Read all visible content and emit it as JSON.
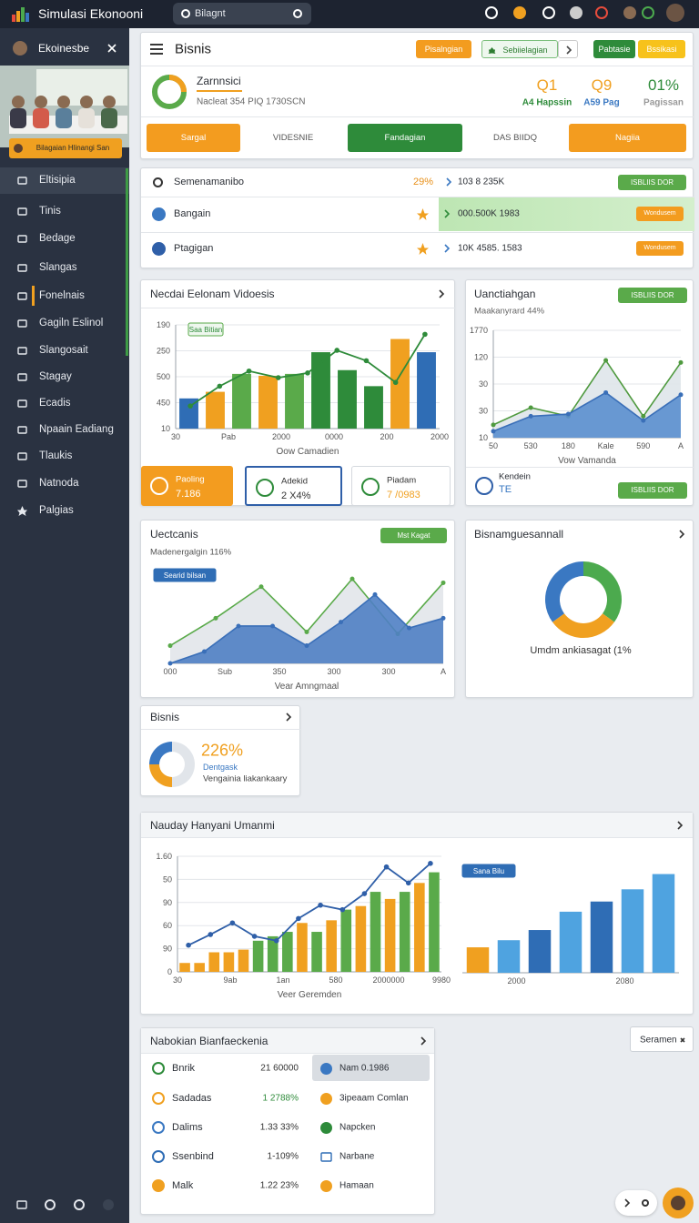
{
  "topbar": {
    "app_title": "Simulasi Ekonooni",
    "search": "Bilagnt"
  },
  "sidebar": {
    "title": "Ekoinesbe",
    "promo": "Bilagaian Hlinangi San",
    "menu": [
      "Eltisipia",
      "Tinis",
      "Bedage",
      "Slangas",
      "Fonelnais",
      "Gagiln Eslinol",
      "Slangosait",
      "Stagay",
      "Ecadis",
      "Npaain Eadiang",
      "Tlaukis",
      "Natnoda",
      "Palgias"
    ]
  },
  "header": {
    "title": "Bisnis",
    "buttons": [
      "Pisalngian",
      "Sebiielagian",
      "Pabtasie",
      "Bssikasi"
    ],
    "profile": {
      "name": "Zarnnsici",
      "subtitle": "Nacleat 354 PIQ 1730SCN"
    },
    "stats": [
      {
        "value": "Q1",
        "label": "A4 Hapssin"
      },
      {
        "value": "Q9",
        "label": "A59 Pag"
      },
      {
        "value": "01%",
        "label": "Pagissan"
      }
    ],
    "tabs": [
      "Sargal",
      "VIDESNIE",
      "Fandagian",
      "DAS BIIDQ",
      "Nagiia"
    ]
  },
  "summary": {
    "rows": [
      {
        "name": "Semenamanibo",
        "pct": "29%",
        "amount": "103 8 235K",
        "action": "ISBLIIS DOR"
      },
      {
        "name": "Bangain",
        "amount": "000.500K 1983",
        "action": "Wondusem"
      },
      {
        "name": "Ptagigan",
        "amount": "10K 4585. 1583",
        "action": "Wondusem"
      }
    ]
  },
  "necdai": {
    "title": "Necdai Eelonam Vidoesis",
    "chart": {
      "type": "combo",
      "legend": "Saa Bitian",
      "ylim": [
        0,
        110
      ],
      "y_labels": [
        "10",
        "450",
        "500",
        "250",
        "190"
      ],
      "x_labels": [
        "30",
        "Pab",
        "2000",
        "0000",
        "200",
        "2000"
      ],
      "x_title": "Oow Camadien",
      "bars": {
        "values": [
          32,
          39,
          58,
          56,
          58,
          81,
          62,
          45,
          95,
          81
        ],
        "colors": [
          "#2f6db5",
          "#f0a020",
          "#5aaa4a",
          "#f0a020",
          "#5aaa4a",
          "#2e8b3a",
          "#2e8b3a",
          "#2e8b3a",
          "#f0a020",
          "#2f6db5"
        ]
      },
      "line": {
        "values": [
          24,
          45,
          61,
          54,
          59,
          83,
          72,
          49,
          100
        ],
        "color": "#2e8b3a"
      }
    },
    "cards": [
      {
        "label": "Paoling",
        "value": "7.186"
      },
      {
        "label": "Adekid",
        "value": "2 X4%"
      },
      {
        "label": "Piadam",
        "value": "7 /0983"
      }
    ]
  },
  "uanctiahgan": {
    "title": "Uanctiahgan",
    "action": "ISBLIIS DOR",
    "subtitle": "Maakanyrard 44%",
    "chart": {
      "type": "area",
      "ylim": [
        0,
        100
      ],
      "y_labels": [
        "10",
        "30",
        "30",
        "120",
        "1770"
      ],
      "x_labels": [
        "50",
        "530",
        "180",
        "Kale",
        "590",
        "A"
      ],
      "x_title": "Vow Vamanda",
      "series": [
        {
          "color": "#4f9a3f",
          "fill": "#dfe6ea",
          "values": [
            12,
            28,
            20,
            72,
            20,
            70
          ]
        },
        {
          "color": "#3a6fb8",
          "fill": "#5b8fcf",
          "values": [
            6,
            20,
            22,
            42,
            16,
            40
          ]
        }
      ]
    },
    "footer": {
      "label": "Kendein",
      "value": "TE",
      "action": "ISBLIIS DOR"
    }
  },
  "uectcanis": {
    "title": "Uectcanis",
    "action": "Mst Kagat",
    "subtitle": "Madenergalgin 116%",
    "chart": {
      "type": "area",
      "legend": "Searid bilsan",
      "ylim": [
        0,
        100
      ],
      "x_labels": [
        "000",
        "Sub",
        "350",
        "300",
        "300",
        "A"
      ],
      "x_title": "Vear Amngmaal",
      "series": [
        {
          "color": "#5aaa4a",
          "fill": "#e2e6ea",
          "values": [
            18,
            46,
            78,
            32,
            86,
            30,
            82
          ]
        },
        {
          "color": "#3a6fb8",
          "fill": "#4f7fc4",
          "values": [
            0,
            12,
            38,
            38,
            18,
            42,
            70,
            36,
            46
          ]
        }
      ]
    }
  },
  "donut_panel": {
    "title": "Bisnamguesannall",
    "caption": "Umdm ankiasagat (1%",
    "chart": {
      "type": "donut",
      "values": [
        35,
        30,
        35
      ],
      "colors": [
        "#4caa4e",
        "#f0a020",
        "#3a78c2"
      ]
    }
  },
  "mini": {
    "title": "Bisnis",
    "value": "226%",
    "label": "Dentgask",
    "caption": "Vengainia liakankaary",
    "chart": {
      "type": "donut",
      "values": [
        50,
        25,
        25
      ],
      "colors": [
        "#e1e5ea",
        "#f0a020",
        "#3a78c2"
      ]
    }
  },
  "nauday": {
    "title": "Nauday Hanyani Umanmi",
    "chart": {
      "type": "combo",
      "ylim": [
        0,
        130
      ],
      "y_labels": [
        "0",
        "90",
        "60",
        "90",
        "50",
        "1.60"
      ],
      "x_labels": [
        "30",
        "9ab",
        "1an",
        "580",
        "2000000",
        "9980"
      ],
      "x_title": "Veer Geremden",
      "bars": {
        "values": [
          10,
          10,
          22,
          22,
          25,
          35,
          40,
          45,
          55,
          45,
          58,
          70,
          74,
          90,
          82,
          90,
          100,
          112
        ],
        "colors": [
          "#f0a020",
          "#f0a020",
          "#f0a020",
          "#f0a020",
          "#f0a020",
          "#5aaa4a",
          "#5aaa4a",
          "#5aaa4a",
          "#f0a020",
          "#5aaa4a",
          "#f0a020",
          "#5aaa4a",
          "#f0a020",
          "#5aaa4a",
          "#f0a020",
          "#5aaa4a",
          "#f0a020",
          "#5aaa4a"
        ]
      },
      "line": {
        "values": [
          30,
          42,
          55,
          40,
          35,
          60,
          75,
          70,
          88,
          118,
          100,
          122
        ],
        "color": "#2f5fa8"
      }
    },
    "chart2": {
      "type": "bar",
      "legend": "Sana Bilu",
      "ylim": [
        0,
        110
      ],
      "x_labels": [
        "2000",
        "2080"
      ],
      "bars": {
        "values": [
          25,
          32,
          42,
          60,
          70,
          82,
          97
        ],
        "colors": [
          "#f0a020",
          "#4fa3e0",
          "#2f6db5",
          "#4fa3e0",
          "#2f6db5",
          "#4fa3e0",
          "#4fa3e0"
        ]
      }
    }
  },
  "table": {
    "title": "Nabokian Bianfaeckenia",
    "rows": [
      {
        "name": "Bnrik",
        "value": "21 60000",
        "note": "Nam 0.1986"
      },
      {
        "name": "Sadadas",
        "value": "1 2788%",
        "note": "3ipeaam Comlan"
      },
      {
        "name": "Dalims",
        "value": "1.33 33%",
        "note": "Napcken"
      },
      {
        "name": "Ssenbind",
        "value": "1-109%",
        "note": "Narbane"
      },
      {
        "name": "Malk",
        "value": "1.22 23%",
        "note": "Hamaan"
      }
    ]
  },
  "filter": {
    "label": "Seramen"
  }
}
